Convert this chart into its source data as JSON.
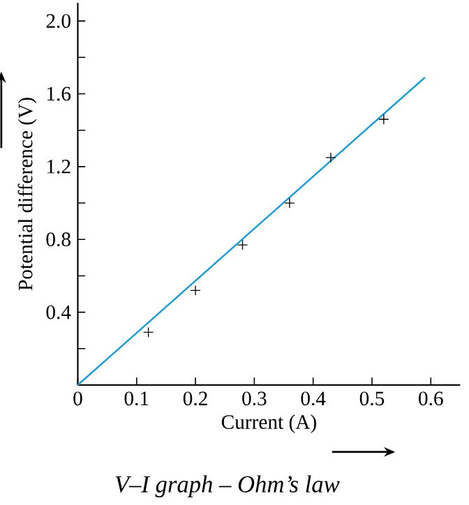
{
  "chart_data": {
    "type": "scatter",
    "title": "V–I graph – Ohm’s law",
    "xlabel": "Current (A)",
    "ylabel": "Potential difference (V)",
    "xlim": [
      0,
      0.65
    ],
    "ylim": [
      0,
      2.1
    ],
    "xticks": [
      0,
      0.1,
      0.2,
      0.3,
      0.4,
      0.5,
      0.6
    ],
    "yticks": [
      {
        "value": 0,
        "label": null
      },
      {
        "value": 0.2,
        "label": null
      },
      0.4,
      {
        "value": 0.6,
        "label": null
      },
      0.8,
      {
        "value": 1.0,
        "label": null
      },
      1.2,
      {
        "value": 1.4,
        "label": null
      },
      1.6,
      {
        "value": 1.8,
        "label": null
      },
      {
        "value": 2.0,
        "label": "2.0"
      }
    ],
    "grid": false,
    "series": [
      {
        "marker": "cross",
        "color": "#000000",
        "x": [
          0.12,
          0.2,
          0.28,
          0.36,
          0.43,
          0.52
        ],
        "values": [
          0.29,
          0.52,
          0.77,
          1.0,
          1.25,
          1.46
        ]
      },
      {
        "type": "line",
        "color": "#1a9bd7",
        "x": [
          0,
          0.59
        ],
        "values": [
          0,
          1.69
        ]
      }
    ]
  }
}
